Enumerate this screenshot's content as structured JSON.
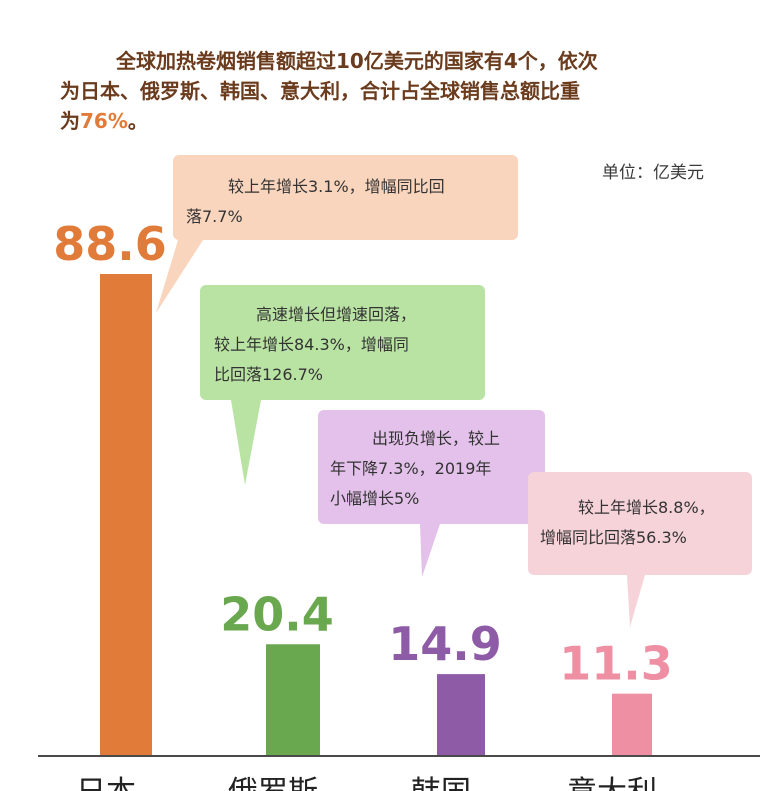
{
  "header": {
    "line1": "全球加热卷烟销售额超过10亿美元的国家有4个，依次",
    "line2": "为日本、俄罗斯、韩国、意大利，合计占全球销售总额比重",
    "line3_prefix": "为",
    "line3_accent": "76%",
    "line3_suffix": "。"
  },
  "unit_label": "单位：亿美元",
  "colors": {
    "japan": "#e07b39",
    "russia": "#6aa84f",
    "korea": "#8e5ba6",
    "italy": "#ef8fa3",
    "header_text": "#6b3b1d",
    "accent": "#e07b39"
  },
  "bubbles": [
    {
      "lines": [
        "较上年增长3.1%，增幅同比回",
        "落7.7%"
      ]
    },
    {
      "lines": [
        "高速增长但增速回落，",
        "较上年增长84.3%，增幅同",
        "比回落126.7%"
      ]
    },
    {
      "lines": [
        "出现负增长，较上",
        "年下降7.3%，2019年",
        "小幅增长5%"
      ]
    },
    {
      "lines": [
        "较上年增长8.8%，",
        "增幅同比回落56.3%"
      ]
    }
  ],
  "chart_data": {
    "type": "bar",
    "categories": [
      "日本",
      "俄罗斯",
      "韩国",
      "意大利"
    ],
    "values": [
      88.6,
      20.4,
      14.9,
      11.3
    ],
    "value_labels": [
      "88.6",
      "20.4",
      "14.9",
      "11.3"
    ],
    "ylabel": "单位：亿美元",
    "ylim": [
      0,
      88.6
    ],
    "grid": false,
    "legend": "none"
  }
}
